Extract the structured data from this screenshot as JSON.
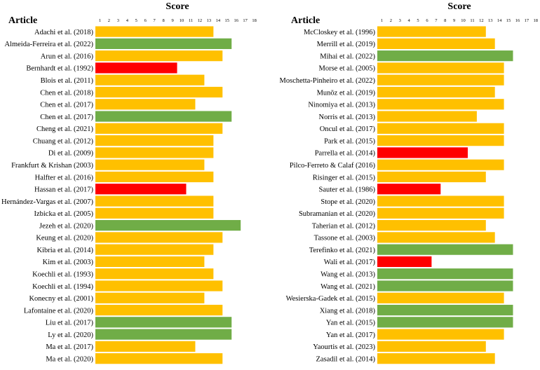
{
  "chart_data": [
    {
      "type": "bar",
      "orientation": "horizontal",
      "title": "Score",
      "ylabel": "Article",
      "x_ticks": [
        1,
        2,
        3,
        4,
        5,
        6,
        7,
        8,
        9,
        10,
        11,
        12,
        13,
        14,
        15,
        16,
        17,
        18
      ],
      "xlim": [
        0,
        18
      ],
      "categories": [
        "Adachi et al. (2018)",
        "Almeida-Ferreira et al. (2022)",
        "Arun et al. (2016)",
        "Bernhardt et al. (1992)",
        "Blois et al. (2011)",
        "Chen et al. (2018)",
        "Chen et al. (2017)",
        "Chen et al. (2017)",
        "Cheng et al. (2021)",
        "Chuang et al. (2012)",
        "Di et al. (2009)",
        "Frankfurt & Krishan (2003)",
        "Halfter et al. (2016)",
        "Hassan et al. (2017)",
        "Hernández-Vargas et al. (2007)",
        "Izbicka et al. (2005)",
        "Jezeh et al. (2020)",
        "Keung et al. (2020)",
        "Kibria et al. (2014)",
        "Kim et al. (2003)",
        "Koechli et al. (1993)",
        "Koechli et al. (1994)",
        "Konecny et al. (2001)",
        "Lafontaine et al. (2020)",
        "Liu et al. (2017)",
        "Ly et al. (2020)",
        "Ma et al. (2017)",
        "Ma et al. (2020)"
      ],
      "values": [
        13,
        15,
        14,
        9,
        12,
        14,
        11,
        15,
        14,
        13,
        13,
        12,
        13,
        10,
        13,
        13,
        16,
        14,
        13,
        12,
        13,
        14,
        12,
        14,
        15,
        15,
        11,
        14
      ],
      "quality": [
        "medium",
        "high",
        "medium",
        "low",
        "medium",
        "medium",
        "medium",
        "high",
        "medium",
        "medium",
        "medium",
        "medium",
        "medium",
        "low",
        "medium",
        "medium",
        "high",
        "medium",
        "medium",
        "medium",
        "medium",
        "medium",
        "medium",
        "medium",
        "high",
        "high",
        "medium",
        "medium"
      ]
    },
    {
      "type": "bar",
      "orientation": "horizontal",
      "title": "Score",
      "ylabel": "Article",
      "x_ticks": [
        1,
        2,
        3,
        4,
        5,
        6,
        7,
        8,
        9,
        10,
        11,
        12,
        13,
        14,
        15,
        16,
        17,
        18
      ],
      "xlim": [
        0,
        18
      ],
      "categories": [
        "McCloskey et al. (1996)",
        "Merrill et al. (2019)",
        "Mihai et al. (2022)",
        "Morse et al. (2005)",
        "Moschetta-Pinheiro et al. (2022)",
        "Munõz et al. (2019)",
        "Ninomiya et al. (2013)",
        "Norris et al. (2013)",
        "Oncul et al. (2017)",
        "Park et al. (2015)",
        "Parrella et al. (2014)",
        "Pilco-Ferreto & Calaf (2016)",
        "Risinger et al. (2015)",
        "Sauter et al. (1986)",
        "Stope et al. (2020)",
        "Subramanian et al. (2020)",
        "Taherian et al. (2012)",
        "Tassone et al. (2003)",
        "Terefinko et al. (2021)",
        "Wali et al. (2017)",
        "Wang et al. (2013)",
        "Wang et al. (2021)",
        "Wesierska-Gadek et al. (2015)",
        "Xiang et al. (2018)",
        "Yan et al. (2015)",
        "Yan et al. (2017)",
        "Yaourtis et al. (2023)",
        "Zasadil et al. (2014)"
      ],
      "values": [
        12,
        13,
        15,
        14,
        14,
        13,
        14,
        11,
        14,
        14,
        10,
        14,
        12,
        7,
        14,
        14,
        12,
        13,
        15,
        6,
        15,
        15,
        14,
        15,
        15,
        14,
        12,
        13
      ],
      "quality": [
        "medium",
        "medium",
        "high",
        "medium",
        "medium",
        "medium",
        "medium",
        "medium",
        "medium",
        "medium",
        "low",
        "medium",
        "medium",
        "low",
        "medium",
        "medium",
        "medium",
        "medium",
        "high",
        "low",
        "high",
        "high",
        "medium",
        "high",
        "high",
        "medium",
        "medium",
        "medium"
      ]
    }
  ],
  "colors": {
    "high": "#70ad47",
    "medium": "#ffc000",
    "low": "#ff0000"
  }
}
